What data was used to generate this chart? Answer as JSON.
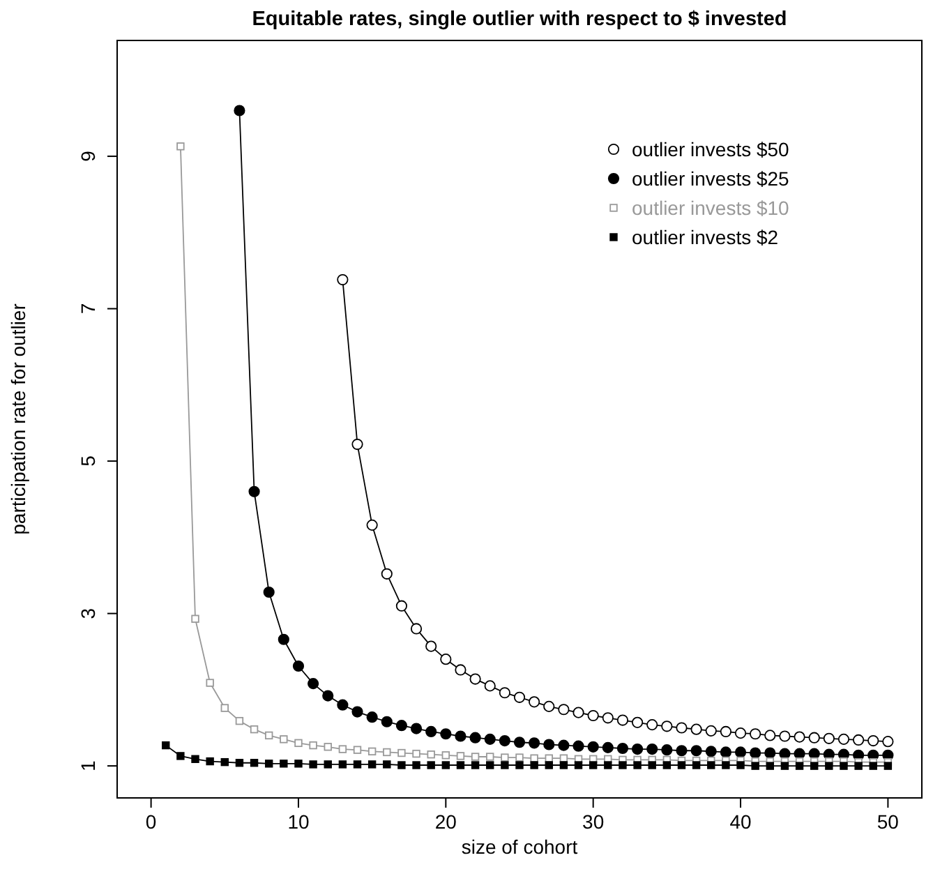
{
  "chart_data": {
    "type": "line",
    "title": "Equitable rates, single outlier with respect to $ invested",
    "xlabel": "size of cohort",
    "ylabel": "participation rate for outlier",
    "x": [
      1,
      2,
      3,
      4,
      5,
      6,
      7,
      8,
      9,
      10,
      11,
      12,
      13,
      14,
      15,
      16,
      17,
      18,
      19,
      20,
      21,
      22,
      23,
      24,
      25,
      26,
      27,
      28,
      29,
      30,
      31,
      32,
      33,
      34,
      35,
      36,
      37,
      38,
      39,
      40,
      41,
      42,
      43,
      44,
      45,
      46,
      47,
      48,
      49,
      50
    ],
    "xlim": [
      -2.3,
      52.3
    ],
    "ylim": [
      0.58,
      10.52
    ],
    "xticks": [
      0,
      10,
      20,
      30,
      40,
      50
    ],
    "yticks": [
      1,
      3,
      5,
      7,
      9
    ],
    "grid": false,
    "legend": "top right",
    "line_style": "solid",
    "series": [
      {
        "name": "outlier invests $50",
        "color": "#000000",
        "marker": "circle",
        "values": [
          null,
          null,
          null,
          null,
          null,
          null,
          null,
          null,
          null,
          null,
          null,
          null,
          7.38,
          5.22,
          4.16,
          3.52,
          3.1,
          2.8,
          2.57,
          2.4,
          2.26,
          2.14,
          2.05,
          1.96,
          1.9,
          1.84,
          1.78,
          1.74,
          1.7,
          1.66,
          1.63,
          1.6,
          1.57,
          1.54,
          1.52,
          1.5,
          1.48,
          1.46,
          1.45,
          1.43,
          1.42,
          1.4,
          1.39,
          1.38,
          1.37,
          1.36,
          1.35,
          1.34,
          1.33,
          1.32
        ]
      },
      {
        "name": "outlier invests $25",
        "color": "#000000",
        "marker": "circle",
        "values": [
          null,
          null,
          null,
          null,
          null,
          9.6,
          4.6,
          3.28,
          2.66,
          2.31,
          2.08,
          1.92,
          1.8,
          1.71,
          1.64,
          1.58,
          1.53,
          1.49,
          1.45,
          1.42,
          1.39,
          1.37,
          1.35,
          1.33,
          1.31,
          1.3,
          1.28,
          1.27,
          1.26,
          1.25,
          1.24,
          1.23,
          1.22,
          1.22,
          1.21,
          1.2,
          1.2,
          1.19,
          1.18,
          1.18,
          1.17,
          1.17,
          1.16,
          1.16,
          1.16,
          1.15,
          1.15,
          1.14,
          1.14,
          1.14
        ]
      },
      {
        "name": "outlier invests $10",
        "color": "#999999",
        "marker": "square",
        "values": [
          null,
          9.13,
          2.93,
          2.09,
          1.76,
          1.59,
          1.48,
          1.4,
          1.35,
          1.3,
          1.27,
          1.25,
          1.22,
          1.21,
          1.19,
          1.18,
          1.17,
          1.16,
          1.15,
          1.14,
          1.13,
          1.12,
          1.12,
          1.11,
          1.11,
          1.1,
          1.1,
          1.1,
          1.09,
          1.09,
          1.09,
          1.08,
          1.08,
          1.08,
          1.08,
          1.07,
          1.07,
          1.07,
          1.07,
          1.07,
          1.06,
          1.06,
          1.06,
          1.06,
          1.06,
          1.06,
          1.06,
          1.05,
          1.05,
          1.05
        ]
      },
      {
        "name": "outlier invests $2",
        "color": "#000000",
        "marker": "square",
        "values": [
          1.27,
          1.13,
          1.09,
          1.06,
          1.05,
          1.04,
          1.04,
          1.03,
          1.03,
          1.03,
          1.02,
          1.02,
          1.02,
          1.02,
          1.02,
          1.02,
          1.01,
          1.01,
          1.01,
          1.01,
          1.01,
          1.01,
          1.01,
          1.01,
          1.01,
          1.01,
          1.01,
          1.01,
          1.01,
          1.01,
          1.01,
          1.01,
          1.01,
          1.01,
          1.01,
          1.01,
          1.01,
          1.01,
          1.01,
          1.01,
          1.0,
          1.0,
          1.0,
          1.0,
          1.0,
          1.0,
          1.0,
          1.0,
          1.0,
          1.0
        ]
      }
    ]
  }
}
